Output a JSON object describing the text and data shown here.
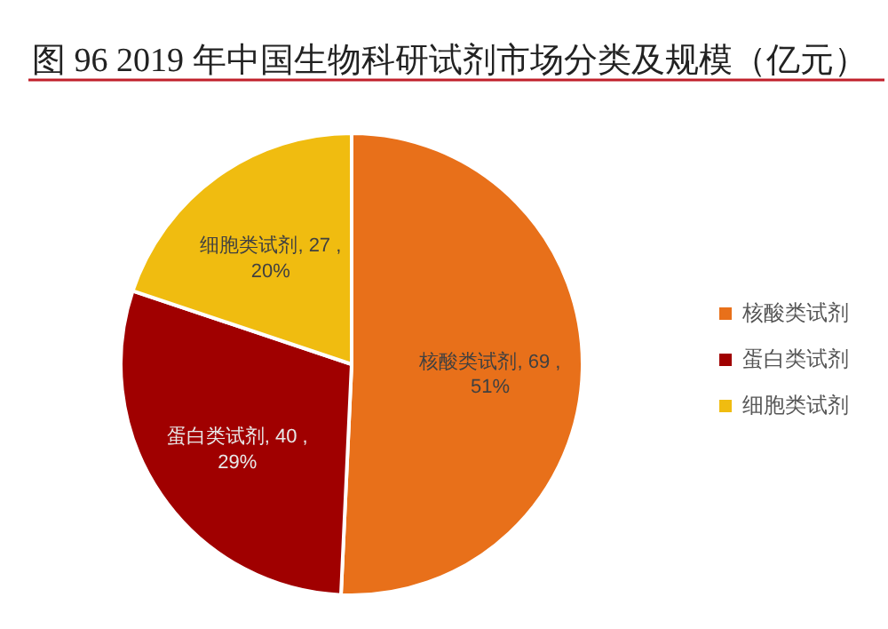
{
  "chart_data": {
    "type": "pie",
    "title": "图 96 2019 年中国生物科研试剂市场分类及规模（亿元）",
    "categories": [
      "核酸类试剂",
      "蛋白类试剂",
      "细胞类试剂"
    ],
    "values": [
      69,
      40,
      27
    ],
    "colors": [
      "#e8701a",
      "#a00000",
      "#f0bc10"
    ],
    "value_labels": [
      "核酸类试剂, 69 , 51%",
      "蛋白类试剂, 40 , 29%",
      "细胞类试剂, 27 , 20%"
    ],
    "legend": "right"
  }
}
